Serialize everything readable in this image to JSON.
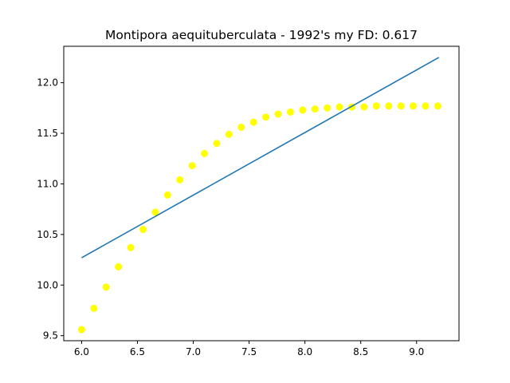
{
  "chart_data": {
    "type": "scatter",
    "title": "Montipora aequituberculata - 1992's my FD: 0.617",
    "xlabel": "",
    "ylabel": "",
    "xlim": [
      5.84,
      9.38
    ],
    "ylim": [
      9.45,
      12.36
    ],
    "xticks": [
      6.0,
      6.5,
      7.0,
      7.5,
      8.0,
      8.5,
      9.0
    ],
    "xtick_labels": [
      "6.0",
      "6.5",
      "7.0",
      "7.5",
      "8.0",
      "8.5",
      "9.0"
    ],
    "yticks": [
      9.5,
      10.0,
      10.5,
      11.0,
      11.5,
      12.0
    ],
    "ytick_labels": [
      "9.5",
      "10.0",
      "10.5",
      "11.0",
      "11.5",
      "12.0"
    ],
    "grid": false,
    "series": [
      {
        "kind": "scatter",
        "color": "#ffff00",
        "x": [
          6.0,
          6.11,
          6.22,
          6.33,
          6.44,
          6.55,
          6.66,
          6.77,
          6.88,
          6.99,
          7.1,
          7.21,
          7.32,
          7.43,
          7.54,
          7.65,
          7.76,
          7.87,
          7.98,
          8.09,
          8.2,
          8.31,
          8.42,
          8.53,
          8.64,
          8.75,
          8.86,
          8.97,
          9.08,
          9.19
        ],
        "y": [
          9.56,
          9.77,
          9.98,
          10.18,
          10.37,
          10.55,
          10.72,
          10.89,
          11.04,
          11.18,
          11.3,
          11.4,
          11.49,
          11.56,
          11.61,
          11.66,
          11.69,
          11.71,
          11.73,
          11.74,
          11.75,
          11.76,
          11.76,
          11.76,
          11.77,
          11.77,
          11.77,
          11.77,
          11.77,
          11.77
        ]
      },
      {
        "kind": "line",
        "color": "#1f77b4",
        "x": [
          6.0,
          9.2
        ],
        "y": [
          10.27,
          12.25
        ]
      }
    ]
  }
}
